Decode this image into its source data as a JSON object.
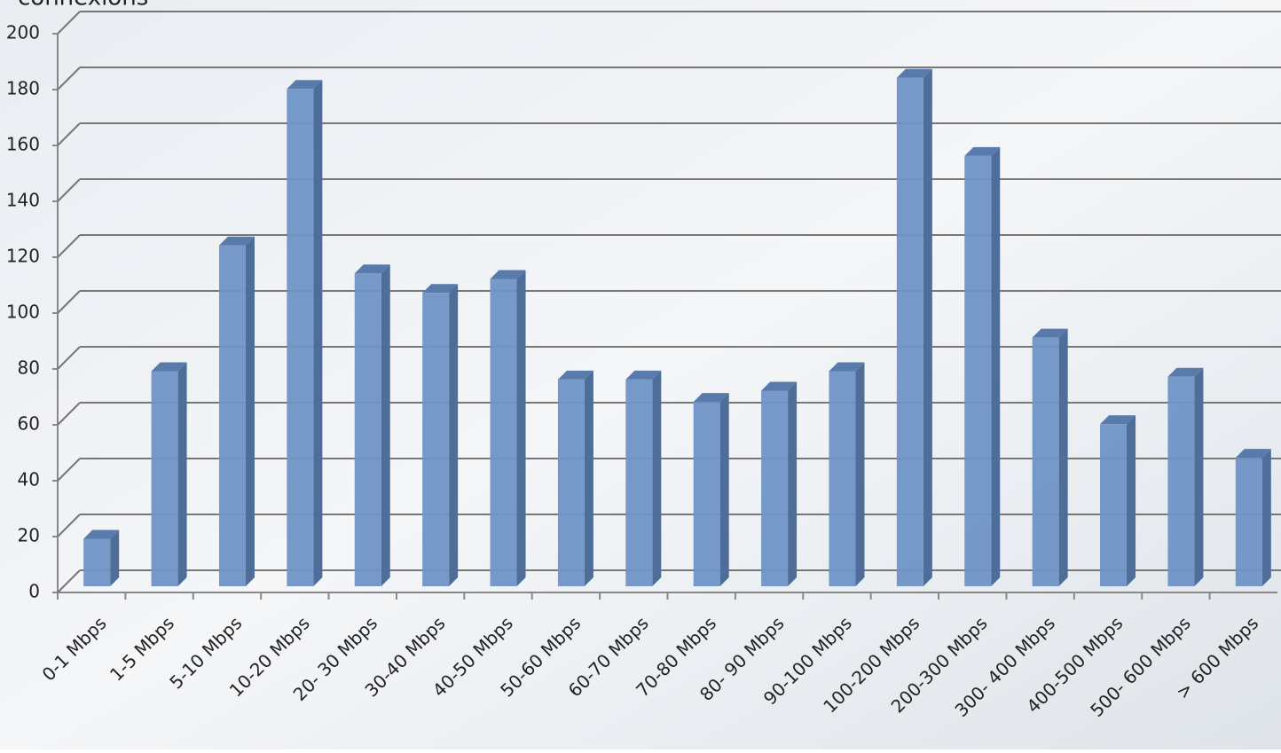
{
  "chart_data": {
    "type": "bar3d",
    "y_label": "connexions",
    "categories": [
      "0-1 Mbps",
      "1-5 Mbps",
      "5-10 Mbps",
      "10-20 Mbps",
      "20- 30 Mbps",
      "30-40 Mbps",
      "40-50 Mbps",
      "50-60 Mbps",
      "60-70 Mbps",
      "70-80 Mbps",
      "80- 90 Mbps",
      "90-100 Mbps",
      "100-200 Mbps",
      "200-300 Mbps",
      "300- 400 Mbps",
      "400-500 Mbps",
      "500- 600 Mbps",
      "> 600 Mbps"
    ],
    "values": [
      17,
      77,
      122,
      178,
      112,
      105,
      110,
      74,
      74,
      66,
      70,
      77,
      182,
      154,
      89,
      58,
      75,
      46
    ],
    "color": "#6f94c6",
    "ylim": [
      0,
      200
    ],
    "yticks": [
      0,
      20,
      40,
      60,
      80,
      100,
      120,
      140,
      160,
      180,
      200
    ],
    "grid": true
  }
}
